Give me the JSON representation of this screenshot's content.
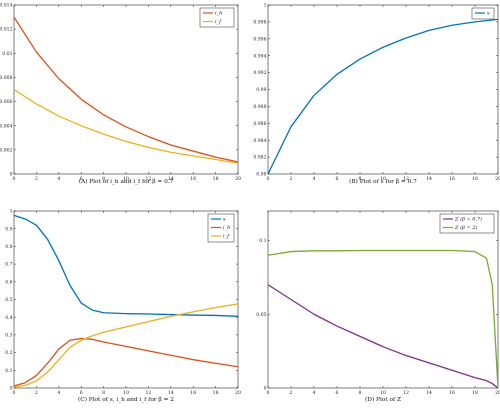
{
  "colors": {
    "blue": "#0072BD",
    "orange": "#D95319",
    "yellow": "#EDB120",
    "purple": "#7E2F8E",
    "green": "#77AC30"
  },
  "chart_data": [
    {
      "type": "line",
      "caption": "(A) Plot of i_h and i_f for β = 0.7",
      "xlim": [
        0,
        20
      ],
      "ylim": [
        0,
        0.014
      ],
      "xticks": [
        "0",
        "2",
        "4",
        "6",
        "8",
        "10",
        "12",
        "14",
        "16",
        "18",
        "20"
      ],
      "yticks": [
        "0",
        "0.002",
        "0.004",
        "0.006",
        "0.008",
        "0.01",
        "0.012",
        "0.014"
      ],
      "ytick_values": [
        0,
        0.002,
        0.004,
        0.006,
        0.008,
        0.01,
        0.012,
        0.014
      ],
      "legend_position": "top-right",
      "x": [
        0,
        2,
        4,
        6,
        8,
        10,
        12,
        14,
        16,
        18,
        20
      ],
      "series": [
        {
          "name": "i_h",
          "color": "orange",
          "values": [
            0.013,
            0.0101,
            0.0079,
            0.0062,
            0.0049,
            0.0039,
            0.0031,
            0.0024,
            0.0019,
            0.0014,
            0.001
          ]
        },
        {
          "name": "i_f",
          "color": "yellow",
          "values": [
            0.007,
            0.0058,
            0.0048,
            0.004,
            0.0033,
            0.0027,
            0.0022,
            0.0018,
            0.0015,
            0.0012,
            0.0009
          ]
        }
      ]
    },
    {
      "type": "line",
      "caption": "(B) Plot of s for β = 0.7",
      "xlim": [
        0,
        20
      ],
      "ylim": [
        0.98,
        1.0
      ],
      "xticks": [
        "0",
        "2",
        "4",
        "6",
        "8",
        "10",
        "12",
        "14",
        "16",
        "18",
        "20"
      ],
      "yticks": [
        "0.98",
        "0.982",
        "0.984",
        "0.986",
        "0.988",
        "0.99",
        "0.992",
        "0.994",
        "0.996",
        "0.998",
        "1"
      ],
      "ytick_values": [
        0.98,
        0.982,
        0.984,
        0.986,
        0.988,
        0.99,
        0.992,
        0.994,
        0.996,
        0.998,
        1.0
      ],
      "legend_position": "top-right",
      "x": [
        0,
        2,
        4,
        6,
        8,
        10,
        12,
        14,
        16,
        18,
        20
      ],
      "series": [
        {
          "name": "s",
          "color": "blue",
          "values": [
            0.98,
            0.9856,
            0.9893,
            0.9918,
            0.9936,
            0.995,
            0.9961,
            0.997,
            0.9976,
            0.998,
            0.9983
          ]
        }
      ]
    },
    {
      "type": "line",
      "caption": "(C) Plot of s, i_h and i_f for β = 2",
      "xlim": [
        0,
        20
      ],
      "ylim": [
        0,
        1
      ],
      "xticks": [
        "0",
        "2",
        "4",
        "6",
        "8",
        "10",
        "12",
        "14",
        "16",
        "18",
        "20"
      ],
      "yticks": [
        "0",
        "0.1",
        "0.2",
        "0.3",
        "0.4",
        "0.5",
        "0.6",
        "0.7",
        "0.8",
        "0.9",
        "1"
      ],
      "ytick_values": [
        0,
        0.1,
        0.2,
        0.3,
        0.4,
        0.5,
        0.6,
        0.7,
        0.8,
        0.9,
        1.0
      ],
      "legend_position": "top-right",
      "x": [
        0,
        1,
        2,
        3,
        4,
        5,
        6,
        7,
        8,
        10,
        12,
        14,
        16,
        18,
        20
      ],
      "series": [
        {
          "name": "s",
          "color": "blue",
          "values": [
            0.975,
            0.955,
            0.92,
            0.84,
            0.72,
            0.58,
            0.48,
            0.44,
            0.425,
            0.42,
            0.418,
            0.415,
            0.412,
            0.41,
            0.405
          ]
        },
        {
          "name": "i_h",
          "color": "orange",
          "values": [
            0.012,
            0.03,
            0.07,
            0.14,
            0.22,
            0.27,
            0.28,
            0.275,
            0.26,
            0.235,
            0.21,
            0.185,
            0.16,
            0.14,
            0.12
          ]
        },
        {
          "name": "i_f",
          "color": "yellow",
          "values": [
            0.005,
            0.015,
            0.04,
            0.09,
            0.16,
            0.23,
            0.27,
            0.295,
            0.315,
            0.345,
            0.375,
            0.405,
            0.43,
            0.455,
            0.475
          ]
        }
      ]
    },
    {
      "type": "line",
      "caption": "(D) Plot of Z",
      "xlim": [
        0,
        20
      ],
      "ylim": [
        0,
        0.12
      ],
      "xticks": [
        "0",
        "2",
        "4",
        "6",
        "8",
        "10",
        "12",
        "14",
        "16",
        "18",
        "20"
      ],
      "yticks": [
        "0",
        "0.05",
        "0.1"
      ],
      "ytick_values": [
        0,
        0.05,
        0.1
      ],
      "legend_position": "top-right",
      "x": [
        0,
        2,
        4,
        6,
        8,
        10,
        12,
        14,
        16,
        18,
        19,
        19.5,
        20
      ],
      "series": [
        {
          "name": "Z (β = 0.7)",
          "color": "purple",
          "values": [
            0.07,
            0.06,
            0.05,
            0.042,
            0.035,
            0.028,
            0.022,
            0.017,
            0.012,
            0.007,
            0.005,
            0.003,
            0.0
          ]
        },
        {
          "name": "Z (β = 2)",
          "color": "green",
          "values": [
            0.09,
            0.0925,
            0.093,
            0.093,
            0.0932,
            0.0932,
            0.0932,
            0.0932,
            0.0932,
            0.0925,
            0.088,
            0.07,
            0.0
          ]
        }
      ]
    }
  ]
}
